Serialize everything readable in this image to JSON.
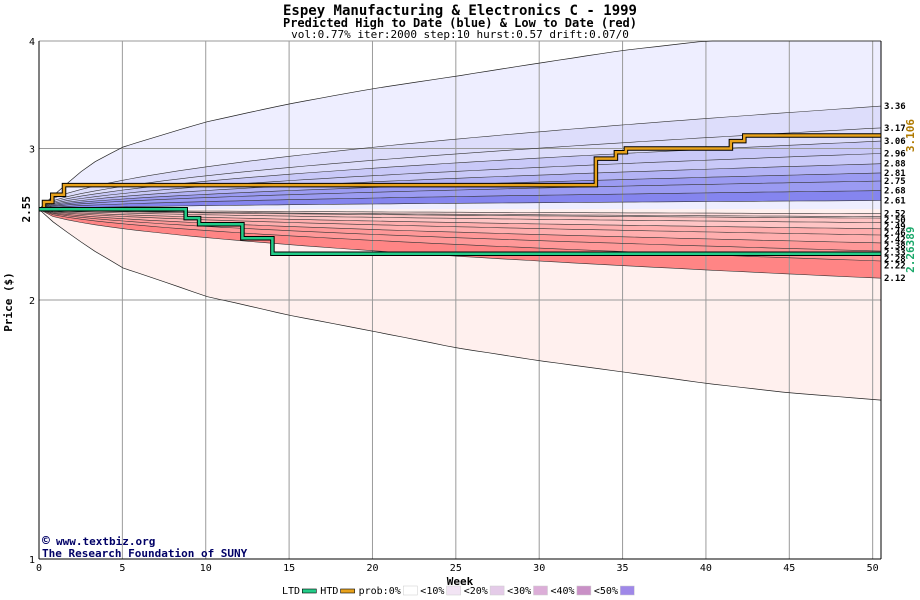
{
  "chart_data": {
    "type": "area",
    "title": "Espey Manufacturing & Electronics C - 1999",
    "subtitle": "Predicted High to Date (blue) &  Low to Date (red)",
    "params": "vol:0.77% iter:2000 step:10 hurst:0.57 drift:0.07/0",
    "xlabel": "Week",
    "ylabel": "Price ($)",
    "xlim": [
      0,
      50.5
    ],
    "ylim": [
      1,
      4
    ],
    "y_scale": "log",
    "x_ticks": [
      0,
      5,
      10,
      15,
      20,
      25,
      30,
      35,
      40,
      45,
      50
    ],
    "y_ticks": [
      1,
      2,
      3,
      4
    ],
    "start_price": 2.55,
    "start_price_label": "2.55",
    "outer_bands": {
      "upper": {
        "x": [
          0,
          1,
          3,
          5,
          10,
          15,
          20,
          25,
          30,
          35,
          40,
          45,
          50.5
        ],
        "y": [
          2.55,
          2.66,
          2.87,
          3.01,
          3.22,
          3.38,
          3.52,
          3.64,
          3.77,
          3.9,
          4.0,
          4.0,
          4.0
        ]
      },
      "lower": {
        "x": [
          0,
          1,
          3,
          5,
          10,
          15,
          20,
          25,
          30,
          35,
          40,
          45,
          50.5
        ],
        "y": [
          2.55,
          2.45,
          2.3,
          2.18,
          2.02,
          1.92,
          1.84,
          1.76,
          1.7,
          1.65,
          1.6,
          1.56,
          1.53
        ]
      }
    },
    "high_percentile_lines": [
      3.36,
      3.17,
      3.06,
      2.96,
      2.88,
      2.81,
      2.75,
      2.68,
      2.61
    ],
    "low_percentile_lines": [
      2.52,
      2.5,
      2.49,
      2.46,
      2.42,
      2.38,
      2.33,
      2.28,
      2.22,
      2.12
    ],
    "right_labels": [
      "3.36",
      "3.17",
      "3.06",
      "2.96",
      "2.88",
      "2.81",
      "2.75",
      "2.68",
      "2.61",
      "2.52",
      "2.50",
      "2.49",
      "2.46",
      "2.42",
      "2.38",
      "2.33",
      "2.28",
      "2.22",
      "2.12"
    ],
    "series": [
      {
        "name": "HTD",
        "color": "#e8a21c",
        "x": [
          0,
          0.3,
          0.3,
          0.8,
          0.8,
          1.5,
          1.5,
          33.4,
          33.4,
          34.6,
          34.6,
          35.2,
          35.2,
          41.5,
          41.5,
          42.3,
          42.3,
          50.5
        ],
        "y": [
          2.55,
          2.55,
          2.6,
          2.6,
          2.65,
          2.65,
          2.72,
          2.72,
          2.92,
          2.92,
          2.97,
          2.97,
          3.0,
          3.0,
          3.06,
          3.06,
          3.106,
          3.106
        ]
      },
      {
        "name": "LTD",
        "color": "#22cc88",
        "x": [
          0,
          8.8,
          8.8,
          9.6,
          9.6,
          12.2,
          12.2,
          14.0,
          14.0,
          50.5
        ],
        "y": [
          2.55,
          2.55,
          2.49,
          2.49,
          2.45,
          2.45,
          2.36,
          2.36,
          2.26389,
          2.26389
        ]
      }
    ],
    "end_labels": {
      "htd": "3.106",
      "ltd": "2.26389"
    },
    "colors": {
      "band_blue": "#eeeeff",
      "band_red": "#fff0ee",
      "blue_shades": [
        "#ddddfb",
        "#c9c9f8",
        "#b3b3f5",
        "#9b9bf2",
        "#8585ef"
      ],
      "red_shades": [
        "#ffdcdc",
        "#ffc5c5",
        "#ffaeae",
        "#ff9898",
        "#ff8585"
      ],
      "grid": "#9a9a9a",
      "credit": "#000066"
    },
    "credits": [
      "www.textbiz.org",
      "The Research Foundation of SUNY"
    ],
    "copyright_symbol": "©",
    "legend": [
      {
        "label": "LTD",
        "type": "line",
        "color": "#22cc88"
      },
      {
        "label": "HTD",
        "type": "line",
        "color": "#e8a21c"
      },
      {
        "label": "prob:0%",
        "type": "swatch",
        "color": "#ffffff"
      },
      {
        "label": "<10%",
        "type": "swatch",
        "color": "#f2e4f4"
      },
      {
        "label": "<20%",
        "type": "swatch",
        "color": "#e4cbe8"
      },
      {
        "label": "<30%",
        "type": "swatch",
        "color": "#dcaed8"
      },
      {
        "label": "<40%",
        "type": "swatch",
        "color": "#c990c6"
      },
      {
        "label": "<50%",
        "type": "swatch",
        "color": "#9f88e8"
      }
    ]
  }
}
